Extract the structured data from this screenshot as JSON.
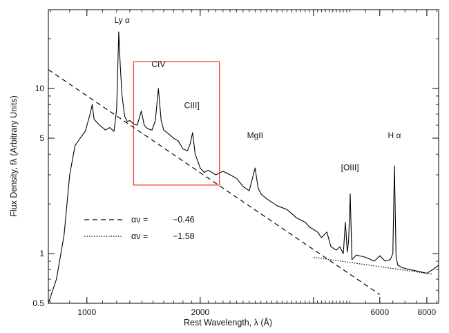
{
  "chart_data": {
    "type": "line",
    "xlabel": "Rest Wavelength, λ (Å)",
    "ylabel": "Flux Density, fλ (Arbitrary Units)",
    "xscale": "log",
    "yscale": "log",
    "xlim": [
      790,
      8600
    ],
    "ylim": [
      0.5,
      30
    ],
    "x_ticks": [
      {
        "value": 1000,
        "label": "1000"
      },
      {
        "value": 2000,
        "label": "2000"
      },
      {
        "value": 4000,
        "label": ""
      },
      {
        "value": 6000,
        "label": "6000"
      },
      {
        "value": 8000,
        "label": "8000"
      }
    ],
    "y_ticks": [
      {
        "value": 0.5,
        "label": "0.5"
      },
      {
        "value": 1,
        "label": "1"
      },
      {
        "value": 5,
        "label": "5"
      },
      {
        "value": 10,
        "label": "10"
      }
    ],
    "series": [
      {
        "style": "solid",
        "color": "#000000",
        "x": [
          790,
          830,
          870,
          900,
          930,
          960,
          990,
          1020,
          1033,
          1045,
          1080,
          1120,
          1150,
          1180,
          1200,
          1215,
          1226,
          1240,
          1260,
          1280,
          1300,
          1330,
          1360,
          1395,
          1420,
          1450,
          1490,
          1520,
          1549,
          1575,
          1600,
          1650,
          1700,
          1750,
          1800,
          1850,
          1880,
          1909,
          1940,
          2000,
          2050,
          2100,
          2200,
          2300,
          2400,
          2500,
          2600,
          2700,
          2798,
          2850,
          2900,
          3000,
          3200,
          3400,
          3600,
          3800,
          3900,
          4000,
          4100,
          4200,
          4340,
          4450,
          4600,
          4700,
          4800,
          4861,
          4920,
          4959,
          5007,
          5060,
          5200,
          5500,
          5800,
          6000,
          6200,
          6400,
          6500,
          6563,
          6630,
          6700,
          6900,
          7200,
          7600,
          8000,
          8300,
          8600
        ],
        "y": [
          0.5,
          0.7,
          1.3,
          3.0,
          4.5,
          5.0,
          5.5,
          7.0,
          8.0,
          6.5,
          6.0,
          5.6,
          5.8,
          5.5,
          7.5,
          22,
          14,
          9.0,
          6.8,
          6.3,
          6.4,
          6.1,
          6.0,
          7.3,
          6.0,
          5.7,
          5.6,
          6.4,
          10.0,
          6.4,
          5.6,
          5.3,
          5.0,
          4.8,
          4.3,
          4.2,
          4.6,
          5.4,
          4.0,
          3.3,
          3.1,
          3.2,
          3.0,
          3.15,
          3.0,
          2.85,
          2.55,
          2.4,
          3.3,
          2.5,
          2.3,
          2.15,
          1.95,
          1.85,
          1.65,
          1.55,
          1.45,
          1.4,
          1.35,
          1.25,
          1.35,
          1.1,
          1.05,
          1.1,
          1.0,
          1.55,
          1.02,
          1.2,
          2.3,
          0.92,
          0.98,
          0.95,
          0.9,
          0.97,
          0.9,
          0.92,
          1.0,
          3.4,
          0.95,
          0.85,
          0.82,
          0.8,
          0.78,
          0.76,
          0.8,
          0.85
        ]
      },
      {
        "style": "dashed",
        "color": "#000000",
        "x": [
          790,
          6000
        ],
        "y": [
          13.0,
          0.565
        ]
      },
      {
        "style": "dotted",
        "color": "#000000",
        "x": [
          4000,
          8300
        ],
        "y": [
          0.95,
          0.75
        ]
      }
    ],
    "legend": [
      {
        "style": "dashed",
        "label": "αν =",
        "value": "−0.46"
      },
      {
        "style": "dotted",
        "label": "αν =",
        "value": "−1.58"
      }
    ],
    "legend_placement": "bottom-left",
    "annotations": [
      {
        "text": "Ly α",
        "x": 1240,
        "y": 25
      },
      {
        "text": "CIV",
        "x": 1549,
        "y": 13.5
      },
      {
        "text": "CIII]",
        "x": 1900,
        "y": 7.6
      },
      {
        "text": "MgII",
        "x": 2798,
        "y": 5.0
      },
      {
        "text": "[OIII]",
        "x": 5000,
        "y": 3.2
      },
      {
        "text": "H α",
        "x": 6563,
        "y": 5.0
      }
    ],
    "highlight_box": {
      "color": "#e8322b",
      "x_range": [
        1330,
        2250
      ],
      "y_range": [
        2.6,
        14.5
      ]
    },
    "grid": false
  }
}
